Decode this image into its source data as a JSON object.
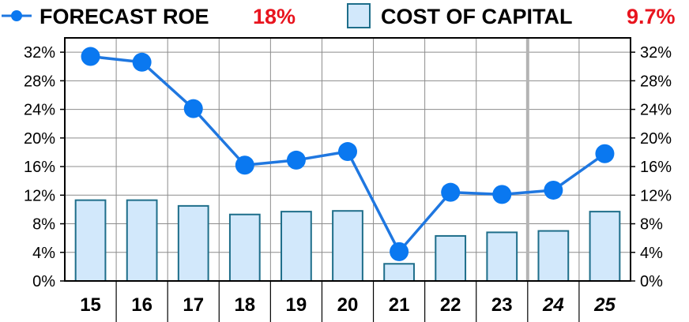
{
  "legend": {
    "line_label": "FORECAST ROE",
    "line_value": "18%",
    "bar_label": "COST OF CAPITAL",
    "bar_value": "9.7%"
  },
  "chart_data": {
    "type": "bar+line",
    "categories": [
      "15",
      "16",
      "17",
      "18",
      "19",
      "20",
      "21",
      "22",
      "23",
      "24",
      "25"
    ],
    "forecast_categories": [
      "24",
      "25"
    ],
    "series": [
      {
        "name": "FORECAST ROE",
        "type": "line",
        "values": [
          31.4,
          30.6,
          24.1,
          16.2,
          16.9,
          18.1,
          4.1,
          12.4,
          12.1,
          12.7,
          17.8
        ]
      },
      {
        "name": "COST OF CAPITAL",
        "type": "bar",
        "values": [
          11.3,
          11.3,
          10.5,
          9.3,
          9.7,
          9.8,
          2.4,
          6.3,
          6.8,
          7.0,
          9.7
        ]
      }
    ],
    "y_ticks": [
      "0%",
      "4%",
      "8%",
      "12%",
      "16%",
      "20%",
      "24%",
      "28%",
      "32%"
    ],
    "ylim": [
      0,
      34
    ],
    "grid": true,
    "legend_position": "top",
    "colors": {
      "line": "#1f77e0",
      "marker": "#0a78f0",
      "bar_fill": "#d2e8fb",
      "bar_stroke": "#1e6e8a",
      "legend_value": "#e8141e",
      "grid": "#8c8c8c",
      "forecast_divider": "#b4b4b4"
    }
  }
}
